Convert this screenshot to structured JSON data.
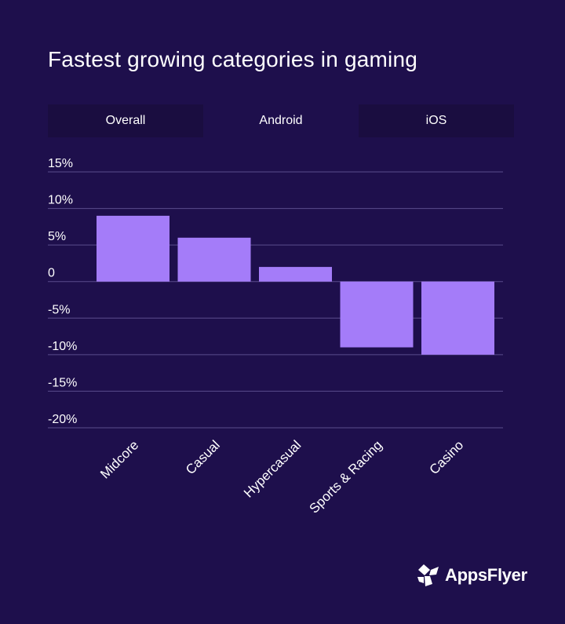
{
  "chart_data": {
    "type": "bar",
    "title": "Fastest growing categories in gaming",
    "categories": [
      "Midcore",
      "Casual",
      "Hypercasual",
      "Sports & Racing",
      "Casino"
    ],
    "series": [
      {
        "values": [
          9,
          6,
          2,
          -9,
          -10
        ]
      }
    ],
    "yticks": [
      15,
      10,
      5,
      0,
      -5,
      -10,
      -15,
      -20
    ],
    "ytick_labels": [
      "15%",
      "10%",
      "5%",
      "0",
      "-5%",
      "-10%",
      "-15%",
      "-20%"
    ],
    "ylim": [
      -20,
      15
    ],
    "grid": true,
    "colors": {
      "bar": "#a47cf9",
      "background": "#1e0f4c",
      "grid": "#5a4c8c"
    }
  },
  "tabs": [
    {
      "label": "Overall"
    },
    {
      "label": "Android"
    },
    {
      "label": "iOS"
    }
  ],
  "logo": {
    "text": "AppsFlyer",
    "icon": "appsflyer-logo-icon"
  }
}
